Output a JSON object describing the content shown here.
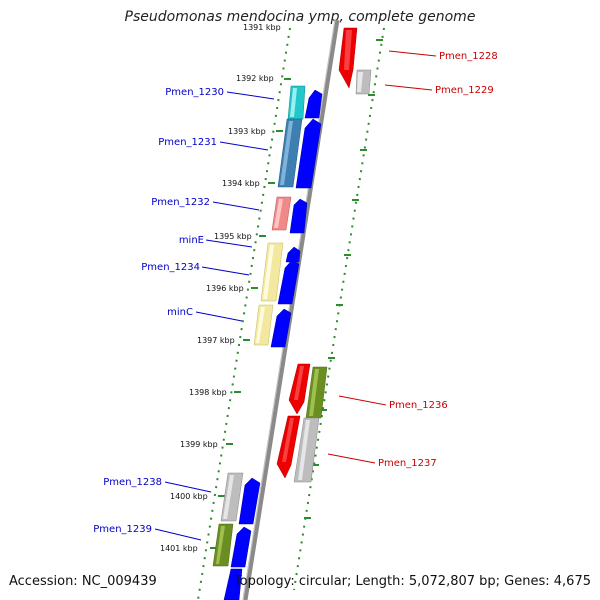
{
  "title": "Pseudomonas mendocina ymp, complete genome",
  "footer": {
    "accession": "Accession: NC_009439",
    "topology": "Topology: circular; Length: 5,072,807 bp; Genes: 4,675"
  },
  "colors": {
    "backbone": "#8a8a8a",
    "forward_label": "#0000cc",
    "reverse_label": "#cc0000",
    "tick": "#2e8b2e"
  },
  "ticks": [
    "1391 kbp",
    "1392 kbp",
    "1393 kbp",
    "1394 kbp",
    "1395 kbp",
    "1396 kbp",
    "1397 kbp",
    "1398 kbp",
    "1399 kbp",
    "1400 kbp",
    "1401 kbp"
  ],
  "left_genes": [
    {
      "name": "Pmen_1230",
      "color": "#20c8cc"
    },
    {
      "name": "Pmen_1231",
      "color": "#3c7fb0"
    },
    {
      "name": "Pmen_1232",
      "color": "#f08a8a"
    },
    {
      "name": "minE",
      "color": "#f2e8a0"
    },
    {
      "name": "Pmen_1234",
      "color": "#f2e8a0"
    },
    {
      "name": "minC",
      "color": "#f2e8a0"
    },
    {
      "name": "Pmen_1238",
      "color": "#bdbdbd"
    },
    {
      "name": "Pmen_1239",
      "color": "#6b8e23"
    }
  ],
  "right_genes": [
    {
      "name": "Pmen_1228",
      "color": "#ee0000"
    },
    {
      "name": "Pmen_1229",
      "color": "#bdbdbd"
    },
    {
      "name": "Pmen_1236",
      "color": "#ee0000"
    },
    {
      "name": "Pmen_1237",
      "color": "#ee0000"
    }
  ]
}
